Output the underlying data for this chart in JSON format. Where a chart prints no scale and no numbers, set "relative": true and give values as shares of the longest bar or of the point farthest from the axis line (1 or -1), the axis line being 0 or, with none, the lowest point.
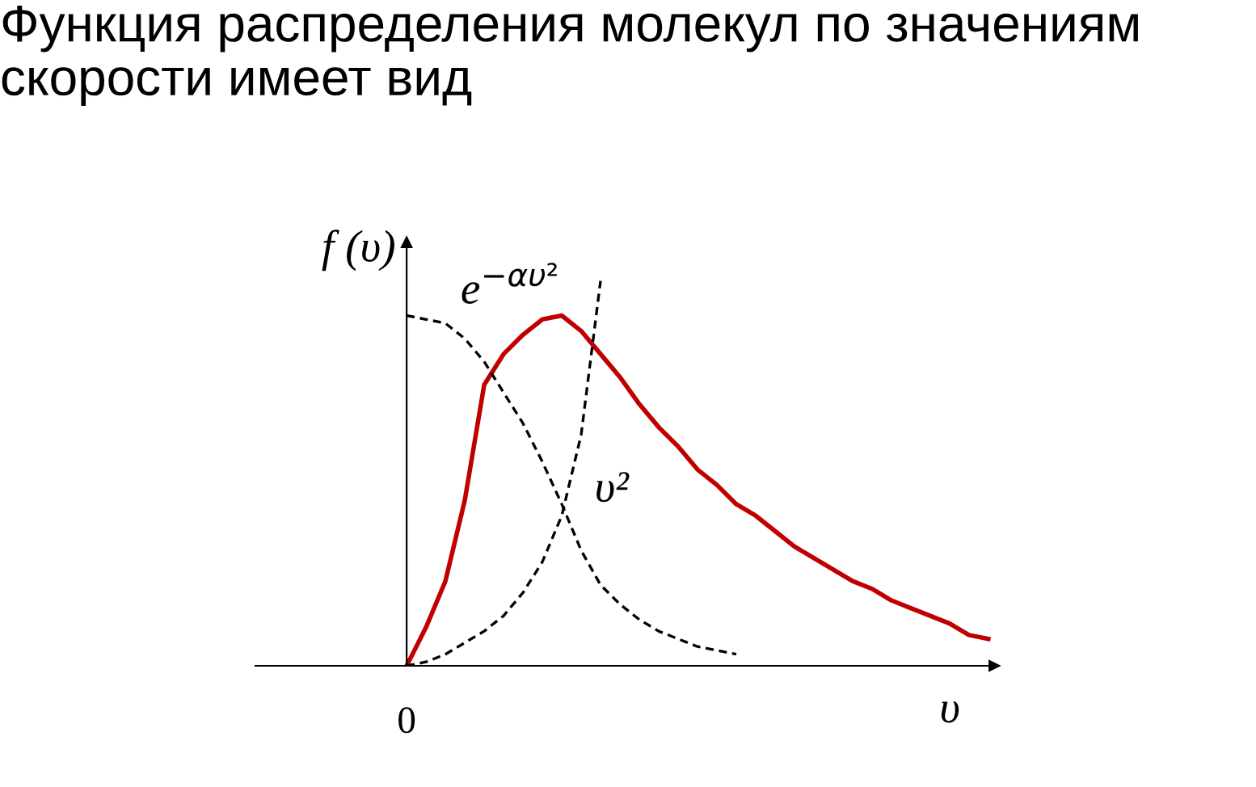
{
  "chart_data": {
    "type": "line",
    "title": "Функция распределения молекул по значениям скорости имеет вид",
    "xlabel": "υ",
    "ylabel": "f (υ)",
    "relative": true,
    "grid": false,
    "legend": false,
    "annotations": [
      "0"
    ],
    "categories": [
      null,
      null,
      null,
      null,
      null,
      null,
      null,
      null,
      null,
      null,
      null,
      null,
      null,
      null,
      null,
      null,
      null,
      null,
      null,
      null,
      null,
      null,
      null,
      null,
      null,
      null,
      null,
      null,
      null,
      null,
      null
    ],
    "series": [
      {
        "color": "#c00000",
        "line_style": "solid",
        "values": [
          0,
          0.1,
          0.22,
          0.43,
          0.73,
          0.81,
          0.86,
          0.9,
          0.91,
          0.87,
          0.81,
          0.75,
          0.68,
          0.62,
          0.57,
          0.51,
          0.47,
          0.42,
          0.39,
          0.35,
          0.31,
          0.28,
          0.25,
          0.22,
          0.2,
          0.17,
          0.15,
          0.13,
          0.11,
          0.08,
          0.07
        ]
      },
      {
        "name": "e$^{−αυ²}$",
        "color": "#000000",
        "line_style": "dashed",
        "values": [
          0.91,
          0.9,
          0.89,
          0.85,
          0.79,
          0.71,
          0.63,
          0.53,
          0.42,
          0.3,
          0.21,
          0.16,
          0.12,
          0.09,
          0.07,
          0.05,
          0.04,
          0.03,
          null,
          null,
          null,
          null,
          null,
          null,
          null,
          null,
          null,
          null,
          null,
          null,
          null
        ]
      },
      {
        "name": "υ²",
        "color": "#000000",
        "line_style": "dashed",
        "values": [
          0,
          0.01,
          0.03,
          0.06,
          0.09,
          0.13,
          0.19,
          0.27,
          0.39,
          0.6,
          1.0,
          null,
          null,
          null,
          null,
          null,
          null,
          null,
          null,
          null,
          null,
          null,
          null,
          null,
          null,
          null,
          null,
          null,
          null,
          null,
          null
        ]
      }
    ]
  }
}
